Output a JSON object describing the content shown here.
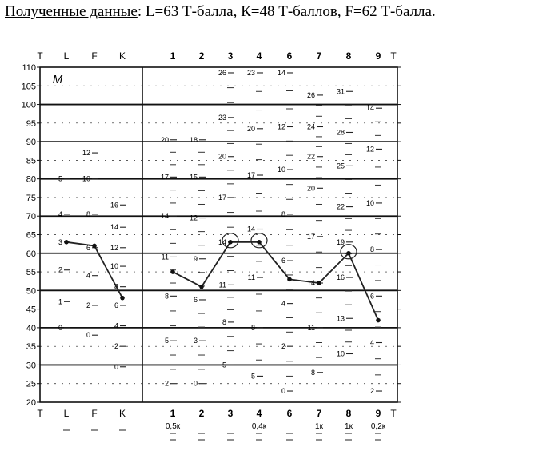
{
  "caption": {
    "lead": "Полученные данные",
    "rest": ": L=63 Т-балла, К=48 Т-баллов, F=62 Т-балла."
  },
  "profile_sheet": {
    "corner_mark": "M",
    "top_left_labels": [
      "T",
      "L",
      "F",
      "K"
    ],
    "bottom_left_labels": [
      "T",
      "L",
      "F",
      "K"
    ],
    "scale_labels": [
      "1",
      "2",
      "3",
      "4",
      "6",
      "7",
      "8",
      "9"
    ],
    "right_label": "T",
    "k_corrections": [
      "0,5к",
      "",
      "",
      "0,4к",
      "",
      "1к",
      "1к",
      "0,2к"
    ],
    "validity_raw": {
      "L": [
        {
          "raw": "5",
          "t": 80
        },
        {
          "raw": "4",
          "t": 70.5
        },
        {
          "raw": "3",
          "t": 63
        },
        {
          "raw": "2",
          "t": 55.5
        },
        {
          "raw": "1",
          "t": 47
        },
        {
          "raw": "0",
          "t": 40
        }
      ],
      "F": [
        {
          "raw": "12",
          "t": 87
        },
        {
          "raw": "10",
          "t": 80
        },
        {
          "raw": "8",
          "t": 70.5
        },
        {
          "raw": "6",
          "t": 61.5
        },
        {
          "raw": "4",
          "t": 54
        },
        {
          "raw": "2",
          "t": 46
        },
        {
          "raw": "0",
          "t": 38
        }
      ],
      "K": [
        {
          "raw": "16",
          "t": 73
        },
        {
          "raw": "14",
          "t": 67
        },
        {
          "raw": "12",
          "t": 61.5
        },
        {
          "raw": "10",
          "t": 56.5
        },
        {
          "raw": "8",
          "t": 51
        },
        {
          "raw": "6",
          "t": 46
        },
        {
          "raw": "4",
          "t": 40.5
        },
        {
          "raw": "2",
          "t": 35
        },
        {
          "raw": "0",
          "t": 29.5
        }
      ]
    },
    "clinical_raw": {
      "1": [
        {
          "raw": "20",
          "t": 90.5
        },
        {
          "raw": "17",
          "t": 80.5
        },
        {
          "raw": "14",
          "t": 70
        },
        {
          "raw": "11",
          "t": 59
        },
        {
          "raw": "8",
          "t": 48.5
        },
        {
          "raw": "5",
          "t": 36.5
        },
        {
          "raw": "2",
          "t": 25
        }
      ],
      "2": [
        {
          "raw": "18",
          "t": 90.5
        },
        {
          "raw": "15",
          "t": 80.5
        },
        {
          "raw": "12",
          "t": 69.5
        },
        {
          "raw": "9",
          "t": 58.5
        },
        {
          "raw": "6",
          "t": 47.5
        },
        {
          "raw": "3",
          "t": 36.5
        },
        {
          "raw": "0",
          "t": 25
        }
      ],
      "3": [
        {
          "raw": "26",
          "t": 108.5
        },
        {
          "raw": "23",
          "t": 96.5
        },
        {
          "raw": "20",
          "t": 86
        },
        {
          "raw": "17",
          "t": 75
        },
        {
          "raw": "14",
          "t": 63
        },
        {
          "raw": "11",
          "t": 51.5
        },
        {
          "raw": "8",
          "t": 41.5
        },
        {
          "raw": "5",
          "t": 30
        }
      ],
      "4": [
        {
          "raw": "23",
          "t": 108.5
        },
        {
          "raw": "20",
          "t": 93.5
        },
        {
          "raw": "17",
          "t": 81
        },
        {
          "raw": "14",
          "t": 66.5
        },
        {
          "raw": "11",
          "t": 53.5
        },
        {
          "raw": "8",
          "t": 40
        },
        {
          "raw": "5",
          "t": 27
        }
      ],
      "6": [
        {
          "raw": "14",
          "t": 108.5
        },
        {
          "raw": "12",
          "t": 94
        },
        {
          "raw": "10",
          "t": 82.5
        },
        {
          "raw": "8",
          "t": 70.5
        },
        {
          "raw": "6",
          "t": 58
        },
        {
          "raw": "4",
          "t": 46.5
        },
        {
          "raw": "2",
          "t": 35
        },
        {
          "raw": "0",
          "t": 23
        }
      ],
      "7": [
        {
          "raw": "26",
          "t": 102.5
        },
        {
          "raw": "24",
          "t": 94
        },
        {
          "raw": "22",
          "t": 86
        },
        {
          "raw": "20",
          "t": 77.5
        },
        {
          "raw": "17",
          "t": 64.5
        },
        {
          "raw": "14",
          "t": 52
        },
        {
          "raw": "11",
          "t": 40
        },
        {
          "raw": "8",
          "t": 28
        }
      ],
      "8": [
        {
          "raw": "31",
          "t": 103.5
        },
        {
          "raw": "28",
          "t": 92.5
        },
        {
          "raw": "25",
          "t": 83.5
        },
        {
          "raw": "22",
          "t": 72.5
        },
        {
          "raw": "19",
          "t": 63
        },
        {
          "raw": "16",
          "t": 53.5
        },
        {
          "raw": "13",
          "t": 42.5
        },
        {
          "raw": "10",
          "t": 33
        }
      ],
      "9": [
        {
          "raw": "14",
          "t": 99
        },
        {
          "raw": "12",
          "t": 88
        },
        {
          "raw": "10",
          "t": 73.5
        },
        {
          "raw": "8",
          "t": 61
        },
        {
          "raw": "6",
          "t": 48.5
        },
        {
          "raw": "4",
          "t": 36
        },
        {
          "raw": "2",
          "t": 23
        }
      ]
    }
  },
  "chart_data": {
    "type": "line",
    "title": "",
    "xlabel": "",
    "ylabel": "T",
    "ylim": [
      20,
      110
    ],
    "yticks": [
      20,
      25,
      30,
      35,
      40,
      45,
      50,
      55,
      60,
      65,
      70,
      75,
      80,
      85,
      90,
      95,
      100,
      105,
      110
    ],
    "bold_gridlines": [
      30,
      40,
      50,
      60,
      70,
      80,
      90,
      100
    ],
    "grid": "horizontal",
    "series": [
      {
        "points": [
          {
            "x": "L",
            "y": 63
          },
          {
            "x": "F",
            "y": 62
          },
          {
            "x": "K",
            "y": 48
          }
        ]
      },
      {
        "points": [
          {
            "x": "1",
            "y": 55
          },
          {
            "x": "2",
            "y": 51
          },
          {
            "x": "3",
            "y": 63
          },
          {
            "x": "4",
            "y": 63
          },
          {
            "x": "6",
            "y": 53
          },
          {
            "x": "7",
            "y": 52
          },
          {
            "x": "8",
            "y": 60
          },
          {
            "x": "9",
            "y": 42
          }
        ]
      }
    ],
    "circled": [
      "3",
      "4",
      "8"
    ]
  }
}
